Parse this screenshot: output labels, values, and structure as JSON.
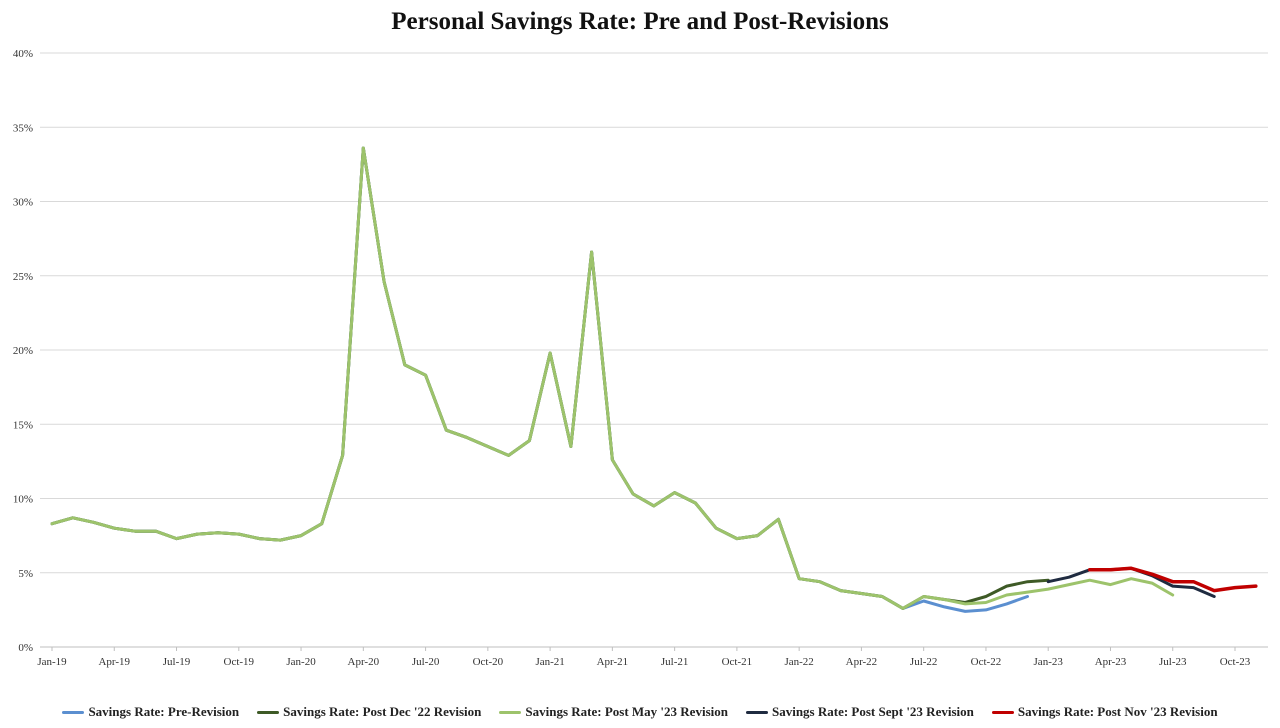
{
  "chart_data": {
    "type": "line",
    "title": "Personal Savings Rate: Pre and Post-Revisions",
    "xlabel": "",
    "ylabel": "",
    "ylim": [
      0,
      40
    ],
    "yticks": [
      "0%",
      "5%",
      "10%",
      "15%",
      "20%",
      "25%",
      "30%",
      "35%",
      "40%"
    ],
    "xticks": [
      "Jan-19",
      "Apr-19",
      "Jul-19",
      "Oct-19",
      "Jan-20",
      "Apr-20",
      "Jul-20",
      "Oct-20",
      "Jan-21",
      "Apr-21",
      "Jul-21",
      "Oct-21",
      "Jan-22",
      "Apr-22",
      "Jul-22",
      "Oct-22",
      "Jan-23",
      "Apr-23",
      "Jul-23",
      "Oct-23"
    ],
    "x_start": "Jan-19",
    "grid": true,
    "legend_position": "bottom",
    "series": [
      {
        "name": "Savings Rate: Pre-Revision",
        "color": "#5b8fd0",
        "start": "Jan-19",
        "values": [
          8.3,
          8.7,
          8.4,
          8.0,
          7.8,
          7.8,
          7.3,
          7.6,
          7.7,
          7.6,
          7.3,
          7.2,
          7.5,
          8.3,
          12.9,
          33.6,
          24.6,
          19.0,
          18.3,
          14.6,
          14.1,
          13.5,
          12.9,
          13.9,
          19.8,
          13.5,
          26.6,
          12.6,
          10.3,
          9.5,
          10.4,
          9.7,
          8.0,
          7.3,
          7.5,
          8.6,
          4.6,
          4.4,
          3.8,
          3.6,
          3.4,
          2.6,
          3.1,
          2.7,
          2.4,
          2.5,
          2.9,
          3.4
        ]
      },
      {
        "name": "Savings Rate: Post Dec '22 Revision",
        "color": "#3e5a26",
        "start": "Jan-19",
        "values": [
          8.3,
          8.7,
          8.4,
          8.0,
          7.8,
          7.8,
          7.3,
          7.6,
          7.7,
          7.6,
          7.3,
          7.2,
          7.5,
          8.3,
          12.9,
          33.6,
          24.6,
          19.0,
          18.3,
          14.6,
          14.1,
          13.5,
          12.9,
          13.9,
          19.8,
          13.5,
          26.6,
          12.6,
          10.3,
          9.5,
          10.4,
          9.7,
          8.0,
          7.3,
          7.5,
          8.6,
          4.6,
          4.4,
          3.8,
          3.6,
          3.4,
          2.6,
          3.4,
          3.2,
          3.0,
          3.4,
          4.1,
          4.4,
          4.5
        ]
      },
      {
        "name": "Savings Rate: Post May '23 Revision",
        "color": "#9dc36b",
        "start": "Jan-19",
        "values": [
          8.3,
          8.7,
          8.4,
          8.0,
          7.8,
          7.8,
          7.3,
          7.6,
          7.7,
          7.6,
          7.3,
          7.2,
          7.5,
          8.3,
          12.9,
          33.6,
          24.6,
          19.0,
          18.3,
          14.6,
          14.1,
          13.5,
          12.9,
          13.9,
          19.8,
          13.5,
          26.6,
          12.6,
          10.3,
          9.5,
          10.4,
          9.7,
          8.0,
          7.3,
          7.5,
          8.6,
          4.6,
          4.4,
          3.8,
          3.6,
          3.4,
          2.6,
          3.4,
          3.2,
          2.9,
          3.0,
          3.5,
          3.7,
          3.9,
          4.2,
          4.5,
          4.2,
          4.6,
          4.3,
          3.5
        ]
      },
      {
        "name": "Savings Rate: Post Sept '23 Revision",
        "color": "#1f2b40",
        "start": "Jan-23",
        "values": [
          4.4,
          4.7,
          5.2,
          5.2,
          5.3,
          4.8,
          4.1,
          4.0,
          3.4
        ]
      },
      {
        "name": "Savings Rate: Post Nov '23 Revision",
        "color": "#c00000",
        "start": "Mar-23",
        "values": [
          5.2,
          5.2,
          5.3,
          4.9,
          4.4,
          4.4,
          3.8,
          4.0,
          4.1
        ]
      }
    ]
  }
}
